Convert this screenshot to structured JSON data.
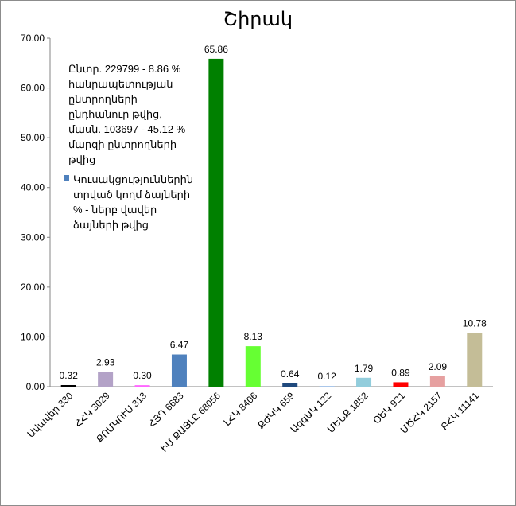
{
  "chart_data": {
    "type": "bar",
    "title": "Շիրակ",
    "xlabel": "",
    "ylabel": "",
    "ylim": [
      0,
      70
    ],
    "y_ticks": [
      "0.00",
      "10.00",
      "20.00",
      "30.00",
      "40.00",
      "50.00",
      "60.00",
      "70.00"
    ],
    "grid": false,
    "legend_position": "left",
    "annotation": "Ընտր. 229799 - 8.86 % հանրապետության ընտրողների ընդհանուր թվից, մասն. 103697 - 45.12 % մարզի ընտրողների թվից",
    "series": [
      {
        "name": "Կուսակցություններին տրված կողմ ձայների % - ներբ վավեր ձայների թվից",
        "color": "#4f81bd"
      }
    ],
    "categories": [
      "Ավավեր 330",
      "ՀՀԿ 3029",
      "ՔՈՄԿՈՒՍ 313",
      "ՀՅԴ 6683",
      "ԻՄ ՔԱՅԼԸ 68056",
      "ԼՀԿ 8406",
      "ՔԺԿԿ 659",
      "ԱզգԱԿ 122",
      "ՄԵՆՔ 1852",
      "ՕԵԿ 921",
      "ՄԾՀԿ 2157",
      "ԲՀԿ 11141"
    ],
    "values": [
      0.32,
      2.93,
      0.3,
      6.47,
      65.86,
      8.13,
      0.64,
      0.12,
      1.79,
      0.89,
      2.09,
      10.78
    ],
    "value_labels": [
      "0.32",
      "2.93",
      "0.30",
      "6.47",
      "65.86",
      "8.13",
      "0.64",
      "0.12",
      "1.79",
      "0.89",
      "2.09",
      "10.78"
    ],
    "bar_colors": [
      "#000000",
      "#b3a2c7",
      "#ff66ff",
      "#4f81bd",
      "#008000",
      "#66ff33",
      "#1f497d",
      "#8db3e2",
      "#92cddc",
      "#ff0000",
      "#e6a0a0",
      "#c4bd97"
    ]
  }
}
